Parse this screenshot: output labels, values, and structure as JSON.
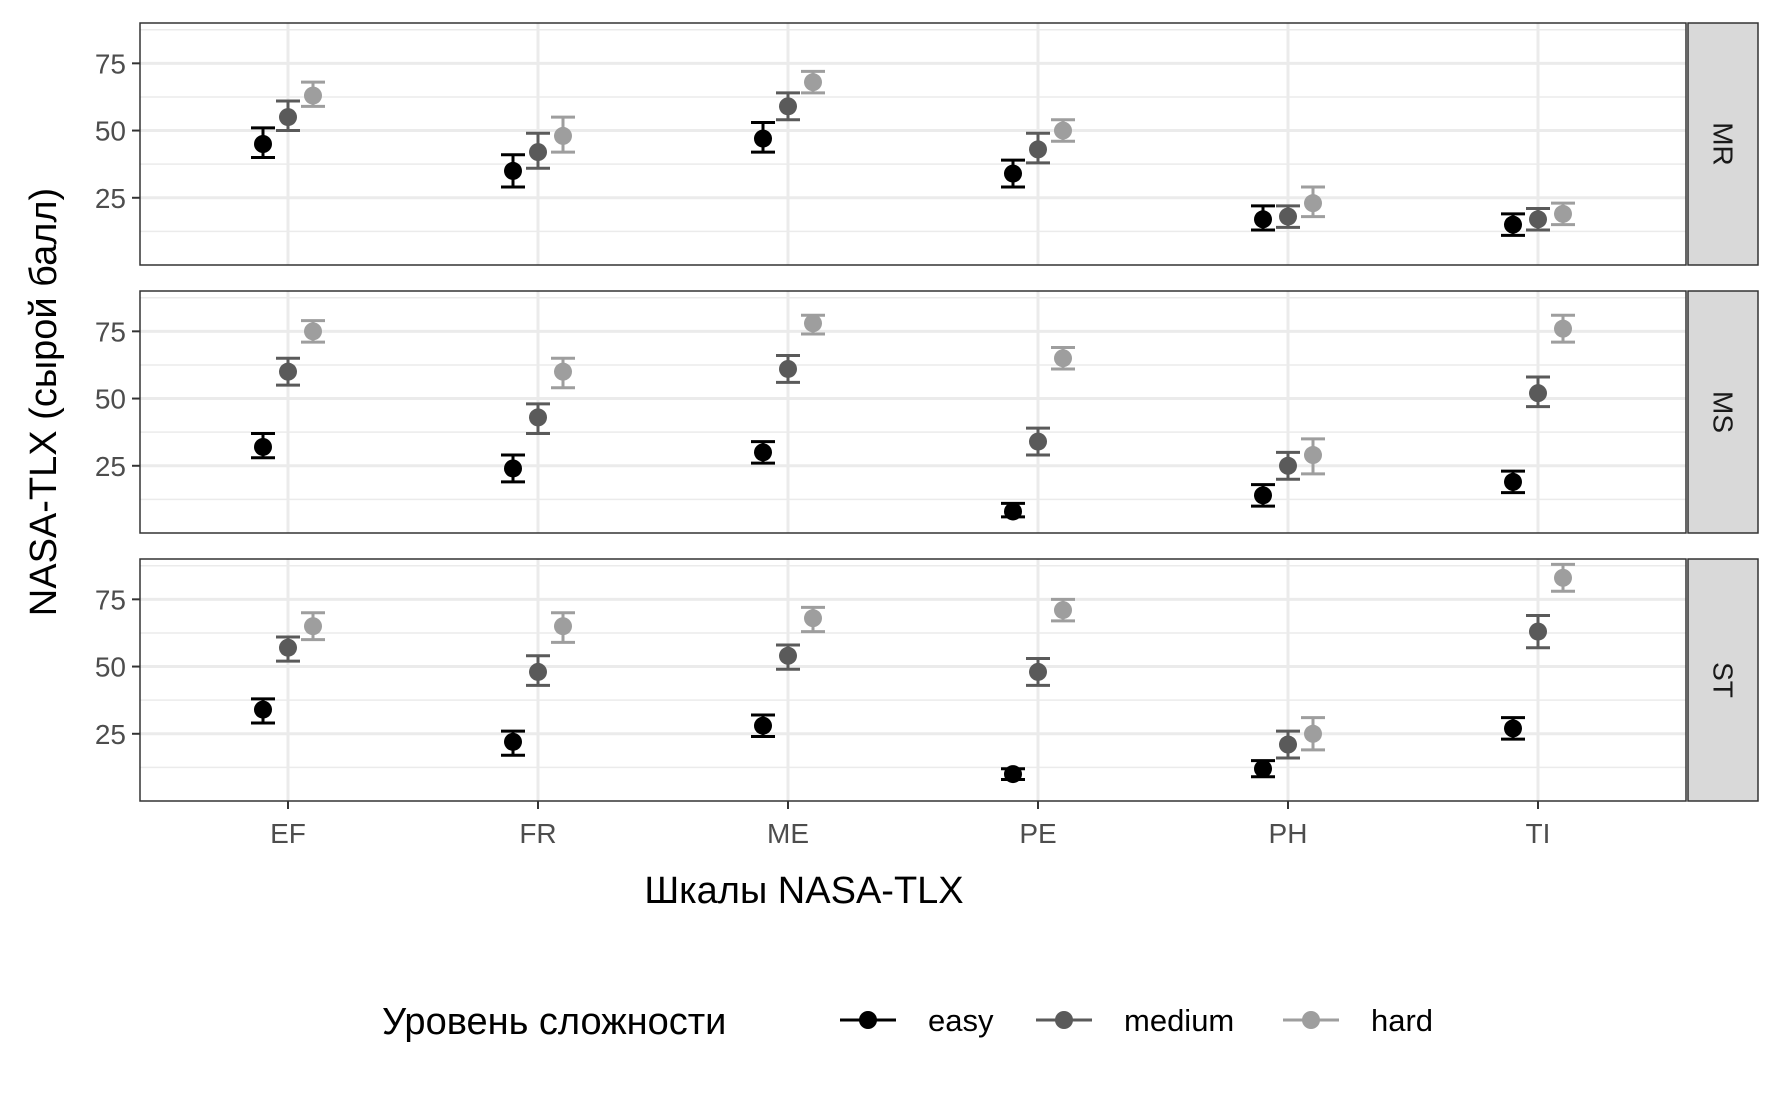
{
  "chart_data": {
    "type": "scatter",
    "subtype": "faceted point plot with error bars",
    "title": "",
    "xlabel": "Шкалы NASA-TLX",
    "ylabel": "NASA-TLX (сырой балл)",
    "categories": [
      "EF",
      "FR",
      "ME",
      "PE",
      "PH",
      "TI"
    ],
    "y_ticks": [
      25,
      50,
      75
    ],
    "ylim": [
      0,
      90
    ],
    "grid": true,
    "legend": {
      "title": "Уровень сложности",
      "position": "bottom"
    },
    "series": [
      {
        "name": "easy",
        "color": "#000000"
      },
      {
        "name": "medium",
        "color": "#5a5a5a"
      },
      {
        "name": "hard",
        "color": "#9e9e9e"
      }
    ],
    "facets": [
      {
        "label": "MR",
        "easy": {
          "y": [
            45,
            35,
            47,
            34,
            17,
            15
          ],
          "lo": [
            40,
            29,
            42,
            29,
            13,
            11
          ],
          "hi": [
            51,
            41,
            53,
            39,
            22,
            19
          ]
        },
        "medium": {
          "y": [
            55,
            42,
            59,
            43,
            18,
            17
          ],
          "lo": [
            50,
            36,
            54,
            38,
            14,
            13
          ],
          "hi": [
            61,
            49,
            64,
            49,
            22,
            21
          ]
        },
        "hard": {
          "y": [
            63,
            48,
            68,
            50,
            23,
            19
          ],
          "lo": [
            59,
            42,
            64,
            46,
            18,
            15
          ],
          "hi": [
            68,
            55,
            72,
            54,
            29,
            23
          ]
        }
      },
      {
        "label": "MS",
        "easy": {
          "y": [
            32,
            24,
            30,
            8,
            14,
            19
          ],
          "lo": [
            28,
            19,
            26,
            6,
            10,
            15
          ],
          "hi": [
            37,
            29,
            34,
            11,
            18,
            23
          ]
        },
        "medium": {
          "y": [
            60,
            43,
            61,
            34,
            25,
            52
          ],
          "lo": [
            55,
            37,
            56,
            29,
            20,
            47
          ],
          "hi": [
            65,
            48,
            66,
            39,
            30,
            58
          ]
        },
        "hard": {
          "y": [
            75,
            60,
            78,
            65,
            29,
            76
          ],
          "lo": [
            71,
            54,
            74,
            61,
            22,
            71
          ],
          "hi": [
            79,
            65,
            81,
            69,
            35,
            81
          ]
        }
      },
      {
        "label": "ST",
        "easy": {
          "y": [
            34,
            22,
            28,
            10,
            12,
            27
          ],
          "lo": [
            29,
            17,
            24,
            8,
            9,
            23
          ],
          "hi": [
            38,
            26,
            32,
            12,
            15,
            31
          ]
        },
        "medium": {
          "y": [
            57,
            48,
            54,
            48,
            21,
            63
          ],
          "lo": [
            52,
            43,
            49,
            43,
            16,
            57
          ],
          "hi": [
            61,
            54,
            58,
            53,
            26,
            69
          ]
        },
        "hard": {
          "y": [
            65,
            65,
            68,
            71,
            25,
            83
          ],
          "lo": [
            60,
            59,
            63,
            67,
            19,
            78
          ],
          "hi": [
            70,
            70,
            72,
            75,
            31,
            88
          ]
        }
      }
    ]
  }
}
